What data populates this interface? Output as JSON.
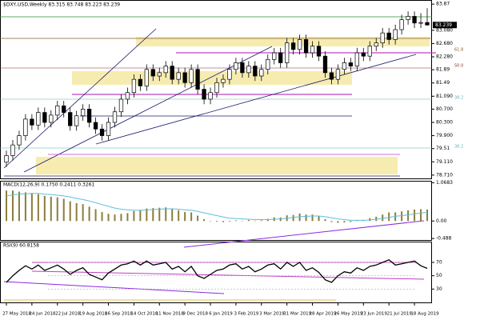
{
  "chart_data": {
    "type": "candlestick",
    "title": "$DXY,USD,Weekly  83.315 83.748 83.223 83.239",
    "categories": [
      "27 May 2018",
      null,
      null,
      null,
      "24 Jun 2018",
      null,
      null,
      null,
      "22 Jul 2018",
      null,
      null,
      null,
      "19 Aug 2018",
      null,
      null,
      null,
      "16 Sep 2018",
      null,
      null,
      null,
      "14 Oct 2018",
      null,
      null,
      null,
      "11 Nov 2018",
      null,
      null,
      null,
      "9 Dec 2018",
      null,
      null,
      null,
      "6 Jan 2019",
      null,
      null,
      null,
      "3 Feb 2019",
      null,
      null,
      null,
      "3 Mar 2019",
      null,
      null,
      null,
      "31 Mar 2019",
      null,
      null,
      null,
      "28 Apr 2019",
      null,
      null,
      null,
      "26 May 2019",
      null,
      null,
      null,
      "23 Jun 2019",
      null,
      null,
      null,
      "21 Jul 2019",
      null,
      null,
      null,
      "18 Aug 2019",
      null,
      null
    ],
    "open": [
      79.1,
      79.3,
      79.62,
      79.9,
      80.4,
      80.22,
      80.6,
      80.3,
      80.52,
      80.8,
      80.6,
      80.2,
      80.5,
      80.7,
      80.3,
      80.1,
      79.9,
      80.3,
      80.62,
      81.0,
      81.2,
      81.6,
      81.4,
      81.9,
      81.7,
      81.8,
      82.0,
      81.6,
      81.8,
      81.5,
      81.9,
      81.3,
      81.0,
      81.2,
      81.5,
      81.6,
      81.9,
      82.1,
      81.8,
      82.0,
      81.7,
      81.9,
      82.2,
      82.4,
      82.1,
      82.7,
      82.5,
      82.8,
      82.4,
      82.6,
      82.3,
      81.8,
      81.6,
      81.9,
      82.1,
      82.0,
      82.4,
      82.3,
      82.6,
      82.7,
      83.0,
      82.8,
      83.1,
      83.4,
      83.5,
      83.3,
      83.315
    ],
    "high": [
      79.45,
      79.77,
      80.05,
      80.55,
      80.55,
      80.75,
      80.75,
      80.67,
      80.95,
      80.95,
      80.75,
      80.65,
      80.85,
      80.85,
      80.45,
      80.25,
      80.45,
      80.77,
      81.15,
      81.35,
      81.75,
      81.75,
      82.05,
      82.05,
      81.95,
      82.15,
      82.15,
      81.95,
      81.95,
      82.05,
      82.05,
      81.45,
      81.35,
      81.65,
      81.75,
      82.05,
      82.25,
      82.25,
      82.15,
      82.15,
      82.05,
      82.35,
      82.55,
      82.55,
      82.85,
      82.85,
      82.95,
      82.95,
      82.75,
      82.75,
      82.45,
      81.95,
      82.05,
      82.25,
      82.25,
      82.55,
      82.55,
      82.75,
      82.85,
      83.15,
      83.15,
      83.25,
      83.55,
      83.65,
      83.65,
      83.6,
      83.748
    ],
    "low": [
      78.95,
      79.15,
      79.47,
      79.75,
      80.07,
      80.07,
      80.15,
      80.15,
      80.37,
      80.45,
      80.05,
      80.05,
      80.35,
      80.15,
      79.95,
      79.75,
      79.75,
      80.15,
      80.47,
      80.85,
      81.05,
      81.25,
      81.25,
      81.55,
      81.55,
      81.65,
      81.45,
      81.45,
      81.35,
      81.35,
      81.15,
      80.85,
      80.85,
      81.05,
      81.35,
      81.45,
      81.75,
      81.65,
      81.65,
      81.55,
      81.55,
      81.75,
      82.05,
      81.95,
      81.95,
      82.35,
      82.35,
      82.25,
      82.25,
      82.15,
      81.65,
      81.45,
      81.45,
      81.75,
      81.85,
      81.85,
      82.15,
      82.15,
      82.45,
      82.55,
      82.65,
      82.65,
      82.95,
      83.25,
      83.15,
      83.15,
      83.223
    ],
    "close": [
      79.3,
      79.62,
      79.9,
      80.4,
      80.22,
      80.6,
      80.3,
      80.52,
      80.8,
      80.6,
      80.2,
      80.5,
      80.7,
      80.3,
      80.1,
      79.9,
      80.3,
      80.62,
      81.0,
      81.2,
      81.6,
      81.4,
      81.9,
      81.7,
      81.8,
      82.0,
      81.6,
      81.8,
      81.5,
      81.9,
      81.3,
      81.0,
      81.2,
      81.5,
      81.6,
      81.9,
      82.1,
      81.8,
      82.0,
      81.7,
      81.9,
      82.2,
      82.4,
      82.1,
      82.7,
      82.5,
      82.8,
      82.4,
      82.6,
      82.3,
      81.8,
      81.6,
      81.9,
      82.1,
      82.0,
      82.4,
      82.3,
      82.6,
      82.7,
      83.0,
      82.8,
      83.1,
      83.4,
      83.5,
      83.3,
      83.315,
      83.239
    ],
    "ylim": [
      78.61,
      83.97
    ],
    "yticks": [
      83.87,
      {
        "value": 83.08,
        "label": "83.080"
      },
      {
        "value": 82.68,
        "label": "82.680"
      },
      {
        "value": 82.28,
        "label": "82.280"
      },
      81.89,
      81.49,
      {
        "value": 81.09,
        "label": "81.090"
      },
      {
        "value": 80.7,
        "label": "80.700"
      },
      {
        "value": 80.3,
        "label": "80.300"
      },
      {
        "value": 79.9,
        "label": "79.900"
      },
      79.51,
      {
        "value": 79.11,
        "label": "79.110"
      },
      {
        "value": 78.71,
        "label": "78.710"
      }
    ],
    "fib_labels": [
      "61.8",
      "50.0",
      "38.2",
      "38.2"
    ],
    "macd": {
      "label": "MACD(12,26,9) 0.1750 0.2411 0.3261",
      "main": [
        0.85,
        0.85,
        0.82,
        0.8,
        0.78,
        0.75,
        0.7,
        0.68,
        0.66,
        0.62,
        0.55,
        0.5,
        0.47,
        0.4,
        0.33,
        0.25,
        0.2,
        0.18,
        0.2,
        0.22,
        0.28,
        0.3,
        0.35,
        0.36,
        0.37,
        0.38,
        0.33,
        0.3,
        0.25,
        0.24,
        0.15,
        0.05,
        0.0,
        -0.02,
        -0.03,
        -0.02,
        0.02,
        0.01,
        0.03,
        0.01,
        0.02,
        0.06,
        0.1,
        0.1,
        0.16,
        0.17,
        0.21,
        0.18,
        0.18,
        0.14,
        0.05,
        -0.03,
        -0.05,
        -0.04,
        -0.03,
        0.02,
        0.03,
        0.08,
        0.12,
        0.18,
        0.24,
        0.24,
        0.27,
        0.3,
        0.32,
        0.33,
        0.32
      ],
      "signal": [
        0.7,
        0.73,
        0.75,
        0.76,
        0.77,
        0.77,
        0.75,
        0.74,
        0.72,
        0.7,
        0.67,
        0.63,
        0.6,
        0.56,
        0.51,
        0.46,
        0.41,
        0.36,
        0.33,
        0.31,
        0.3,
        0.3,
        0.31,
        0.32,
        0.33,
        0.34,
        0.34,
        0.33,
        0.31,
        0.3,
        0.27,
        0.23,
        0.19,
        0.15,
        0.11,
        0.08,
        0.07,
        0.06,
        0.05,
        0.04,
        0.04,
        0.04,
        0.05,
        0.06,
        0.08,
        0.1,
        0.12,
        0.13,
        0.14,
        0.14,
        0.12,
        0.09,
        0.06,
        0.04,
        0.02,
        0.02,
        0.02,
        0.03,
        0.05,
        0.07,
        0.1,
        0.13,
        0.15,
        0.17,
        0.2,
        0.22,
        0.24
      ],
      "ylim": [
        -0.53,
        1.1
      ],
      "yticks": [
        1.0683,
        {
          "value": 0,
          "label": "0.00"
        },
        -0.488
      ]
    },
    "rsi": {
      "label": "RSI(9) 60.8158",
      "values": [
        40,
        50,
        58,
        65,
        60,
        66,
        58,
        62,
        66,
        60,
        52,
        58,
        62,
        52,
        48,
        44,
        54,
        60,
        66,
        68,
        72,
        66,
        72,
        66,
        68,
        70,
        60,
        64,
        56,
        64,
        50,
        46,
        52,
        58,
        60,
        66,
        68,
        60,
        64,
        56,
        60,
        66,
        68,
        60,
        70,
        64,
        70,
        58,
        62,
        55,
        44,
        40,
        50,
        56,
        54,
        62,
        58,
        64,
        66,
        70,
        74,
        66,
        68,
        70,
        72,
        65,
        61
      ],
      "ylim": [
        10,
        100
      ],
      "yticks": [
        70,
        50,
        30
      ]
    }
  }
}
